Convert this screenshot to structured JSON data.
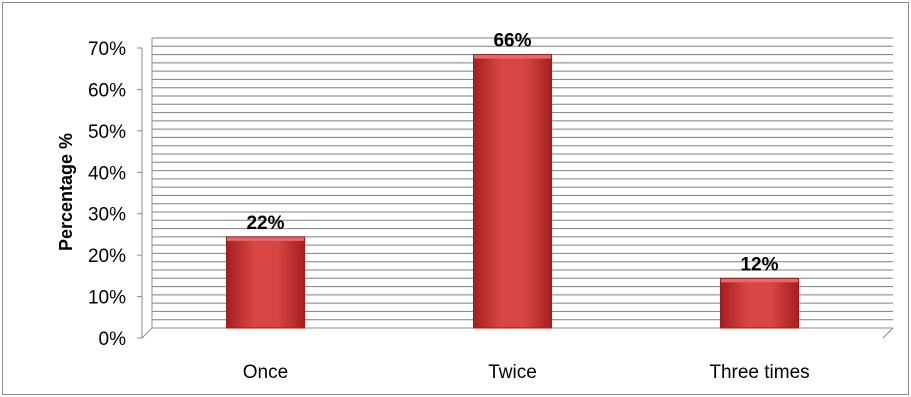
{
  "chart_data": {
    "type": "bar",
    "title": "",
    "xlabel": "",
    "ylabel": "Percentage %",
    "categories": [
      "Once",
      "Twice",
      "Three times"
    ],
    "values": [
      22,
      66,
      12
    ],
    "data_labels": [
      "22%",
      "66%",
      "12%"
    ],
    "ylim": [
      0,
      70
    ],
    "y_ticks": [
      "0%",
      "10%",
      "20%",
      "30%",
      "40%",
      "50%",
      "60%",
      "70%"
    ],
    "grid": true,
    "legend": "none",
    "bar_color": "#d03a3a",
    "bar_color_dark": "#9c1c1c"
  }
}
